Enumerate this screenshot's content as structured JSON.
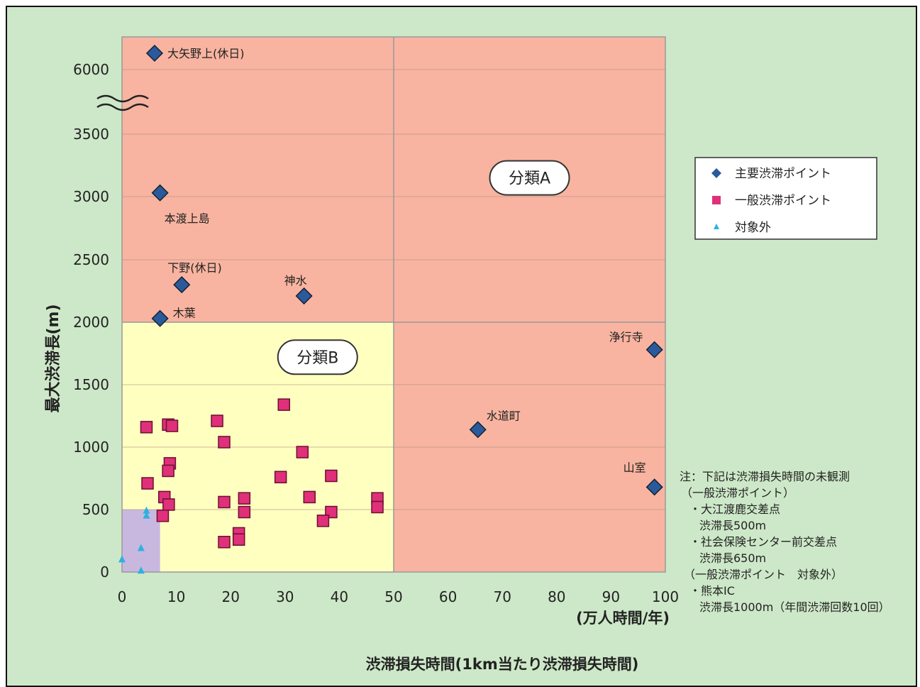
{
  "chart_data": {
    "type": "scatter",
    "xlabel": "渋滞損失時間(1km当たり渋滞損失時間)",
    "xunit": "(万人時間/年)",
    "ylabel": "最大渋滞長(m)",
    "xlim": [
      0,
      100
    ],
    "x_ticks": [
      0,
      10,
      20,
      30,
      40,
      50,
      60,
      70,
      80,
      90,
      100
    ],
    "y_ticks": [
      0,
      500,
      1000,
      1500,
      2000,
      2500,
      3000,
      3500,
      6000
    ],
    "y_axis_break": "3500-6000",
    "regions": [
      {
        "name": "分類A",
        "x_range": [
          0,
          100
        ],
        "y_range": [
          2000,
          6300
        ],
        "color": "#f8b4a0"
      },
      {
        "name": "分類A-right",
        "label": "",
        "x_range": [
          50,
          100
        ],
        "y_range": [
          0,
          2000
        ],
        "color": "#f8b4a0"
      },
      {
        "name": "分類B",
        "x_range": [
          0,
          50
        ],
        "y_range": [
          0,
          2000
        ],
        "color": "#ffffc0"
      },
      {
        "name": "minor",
        "label": "",
        "x_range": [
          0,
          7
        ],
        "y_range": [
          0,
          500
        ],
        "color": "#c8b8e0"
      }
    ],
    "region_labels": [
      {
        "text": "分類A",
        "x": 75,
        "y": 3150
      },
      {
        "text": "分類B",
        "x": 36,
        "y": 1720
      }
    ],
    "series": [
      {
        "name": "主要渋滞ポイント",
        "marker": "diamond",
        "color": "#2b5a9c",
        "points": [
          {
            "x": 6,
            "y": 6150,
            "label": "大矢野上(休日)"
          },
          {
            "x": 7,
            "y": 3030,
            "label": "本渡上島"
          },
          {
            "x": 11,
            "y": 2300,
            "label": "下野(休日)"
          },
          {
            "x": 33.5,
            "y": 2210,
            "label": "神水"
          },
          {
            "x": 7,
            "y": 2030,
            "label": "木葉"
          },
          {
            "x": 98,
            "y": 1780,
            "label": "浄行寺"
          },
          {
            "x": 65.5,
            "y": 1140,
            "label": "水道町"
          },
          {
            "x": 98,
            "y": 680,
            "label": "山室"
          }
        ]
      },
      {
        "name": "一般渋滞ポイント",
        "marker": "square",
        "color": "#e0307a",
        "points": [
          {
            "x": 4.5,
            "y": 1160
          },
          {
            "x": 8.5,
            "y": 1180
          },
          {
            "x": 9.2,
            "y": 1170
          },
          {
            "x": 17.5,
            "y": 1210
          },
          {
            "x": 18.8,
            "y": 1040
          },
          {
            "x": 29.8,
            "y": 1340
          },
          {
            "x": 33.2,
            "y": 960
          },
          {
            "x": 4.7,
            "y": 710
          },
          {
            "x": 8.8,
            "y": 870
          },
          {
            "x": 8.5,
            "y": 810
          },
          {
            "x": 7.8,
            "y": 600
          },
          {
            "x": 8.6,
            "y": 540
          },
          {
            "x": 7.5,
            "y": 450
          },
          {
            "x": 18.8,
            "y": 560
          },
          {
            "x": 22.5,
            "y": 590
          },
          {
            "x": 22.5,
            "y": 480
          },
          {
            "x": 21.5,
            "y": 310
          },
          {
            "x": 21.5,
            "y": 260
          },
          {
            "x": 18.8,
            "y": 240
          },
          {
            "x": 29.2,
            "y": 760
          },
          {
            "x": 34.5,
            "y": 600
          },
          {
            "x": 38.5,
            "y": 770
          },
          {
            "x": 38.5,
            "y": 480
          },
          {
            "x": 37,
            "y": 410
          },
          {
            "x": 47,
            "y": 590
          },
          {
            "x": 47,
            "y": 520
          }
        ]
      },
      {
        "name": "対象外",
        "marker": "triangle",
        "color": "#30b0e0",
        "points": [
          {
            "x": 4.5,
            "y": 490
          },
          {
            "x": 4.5,
            "y": 450
          },
          {
            "x": 3.5,
            "y": 190
          },
          {
            "x": 0,
            "y": 100
          },
          {
            "x": 3.5,
            "y": 10
          }
        ]
      }
    ],
    "legend_position": "right"
  },
  "notes": [
    "注：下記は渋滞損失時間の未観測",
    "（一般渋滞ポイント）",
    "・大江渡鹿交差点",
    "渋滞長500m",
    "・社会保険センター前交差点",
    "渋滞長650m",
    "（一般渋滞ポイント　対象外）",
    "・熊本IC",
    "渋滞長1000m（年間渋滞回数10回）"
  ]
}
